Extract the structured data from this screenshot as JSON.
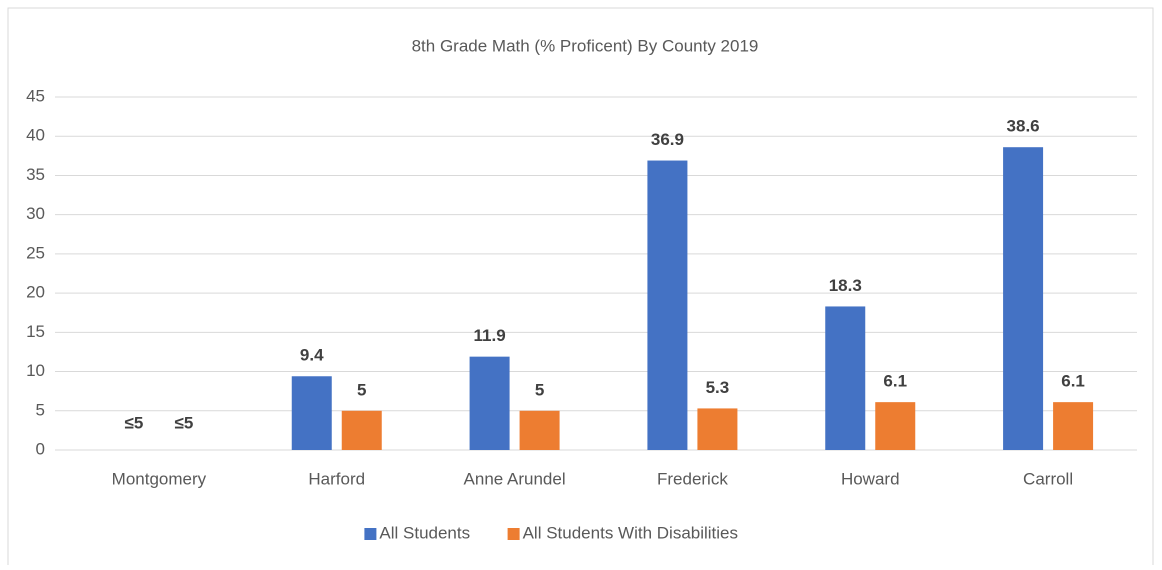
{
  "chart_data": {
    "type": "bar",
    "title": "8th Grade Math (% Proficent) By County 2019",
    "categories": [
      "Montgomery",
      "Harford",
      "Anne Arundel",
      "Frederick",
      "Howard",
      "Carroll"
    ],
    "series": [
      {
        "name": "All Students",
        "color": "#4472c4",
        "values": [
          null,
          9.4,
          11.9,
          36.9,
          18.3,
          38.6
        ],
        "value_labels": [
          "≤5",
          "9.4",
          "11.9",
          "36.9",
          "18.3",
          "38.6"
        ]
      },
      {
        "name": "All Students With Disabilities",
        "color": "#ed7d31",
        "values": [
          null,
          5,
          5,
          5.3,
          6.1,
          6.1
        ],
        "value_labels": [
          "≤5",
          "5",
          "5",
          "5.3",
          "6.1",
          "6.1"
        ]
      }
    ],
    "ylim": [
      0,
      45
    ],
    "yticks": [
      0,
      5,
      10,
      15,
      20,
      25,
      30,
      35,
      40,
      45
    ],
    "grid": true,
    "legend": "bottom"
  }
}
